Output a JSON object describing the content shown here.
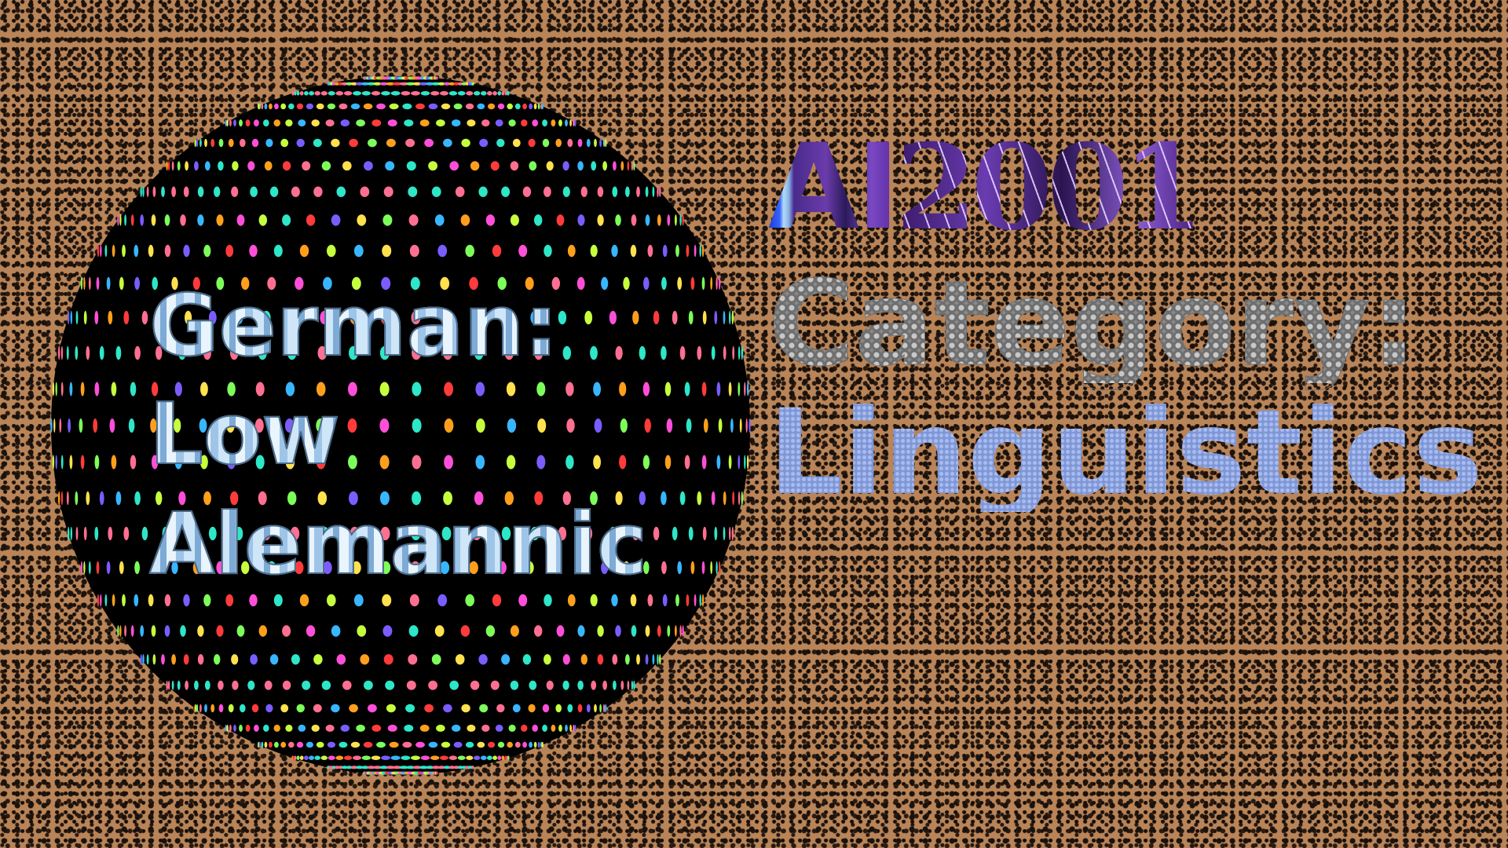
{
  "ball_text": {
    "line1": "German:",
    "line2": "Low",
    "line3": "Alemannic"
  },
  "heading": {
    "ai": "AI",
    "year": "2001",
    "category": "Category:",
    "subject": "Linguistics"
  },
  "colors": {
    "background": "#b88458",
    "leopard_spot": "#1a120c",
    "ball": "#000000",
    "ball_text": "#cfe6f8",
    "ai_blue": "#2c52f0",
    "year_purple": "#5a2aa0",
    "category_gray": "#8a8a8a",
    "subject_blue": "#7f96d6"
  }
}
